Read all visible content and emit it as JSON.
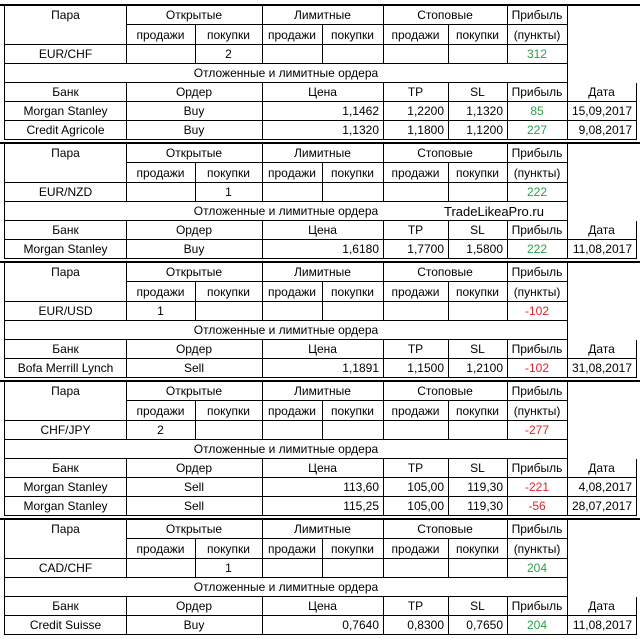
{
  "headers": {
    "pair": "Пара",
    "open": "Открытые",
    "limit": "Лимитные",
    "stop": "Стоповые",
    "profit": "Прибыль",
    "sell": "продажи",
    "buy": "покупки",
    "points": "(пункты)",
    "pending": "Отложенные и лимитные ордера",
    "bank": "Банк",
    "order": "Ордер",
    "price": "Цена",
    "tp": "TP",
    "sl": "SL",
    "date": "Дата"
  },
  "watermark": "TradeLikeaPro.ru",
  "colors": {
    "positive": "#2aa24a",
    "negative": "#e8202a"
  },
  "blocks": [
    {
      "pair": "EUR/CHF",
      "open_sell": "",
      "open_buy": "2",
      "total": "312",
      "total_sign": "pos",
      "orders": [
        {
          "bank": "Morgan Stanley",
          "order": "Buy",
          "price": "1,1462",
          "tp": "1,2200",
          "sl": "1,1320",
          "profit": "85",
          "sign": "pos",
          "date": "15,09,2017"
        },
        {
          "bank": "Credit Agricole",
          "order": "Buy",
          "price": "1,1320",
          "tp": "1,1800",
          "sl": "1,1200",
          "profit": "227",
          "sign": "pos",
          "date": "9,08,2017"
        }
      ]
    },
    {
      "pair": "EUR/NZD",
      "open_sell": "",
      "open_buy": "1",
      "total": "222",
      "total_sign": "pos",
      "orders": [
        {
          "bank": "Morgan Stanley",
          "order": "Buy",
          "price": "1,6180",
          "tp": "1,7700",
          "sl": "1,5800",
          "profit": "222",
          "sign": "pos",
          "date": "11,08,2017"
        }
      ]
    },
    {
      "pair": "EUR/USD",
      "open_sell": "1",
      "open_buy": "",
      "total": "-102",
      "total_sign": "neg",
      "orders": [
        {
          "bank": "Bofa Merrill Lynch",
          "order": "Sell",
          "price": "1,1891",
          "tp": "1,1500",
          "sl": "1,2100",
          "profit": "-102",
          "sign": "neg",
          "date": "31,08,2017"
        }
      ]
    },
    {
      "pair": "CHF/JPY",
      "open_sell": "2",
      "open_buy": "",
      "total": "-277",
      "total_sign": "neg",
      "orders": [
        {
          "bank": "Morgan Stanley",
          "order": "Sell",
          "price": "113,60",
          "tp": "105,00",
          "sl": "119,30",
          "profit": "-221",
          "sign": "neg",
          "date": "4,08,2017"
        },
        {
          "bank": "Morgan Stanley",
          "order": "Sell",
          "price": "115,25",
          "tp": "105,00",
          "sl": "119,30",
          "profit": "-56",
          "sign": "neg",
          "date": "28,07,2017"
        }
      ]
    },
    {
      "pair": "CAD/CHF",
      "open_sell": "",
      "open_buy": "1",
      "total": "204",
      "total_sign": "pos",
      "orders": [
        {
          "bank": "Credit Suisse",
          "order": "Buy",
          "price": "0,7640",
          "tp": "0,8300",
          "sl": "0,7650",
          "profit": "204",
          "sign": "pos",
          "date": "11,08,2017"
        }
      ]
    }
  ]
}
